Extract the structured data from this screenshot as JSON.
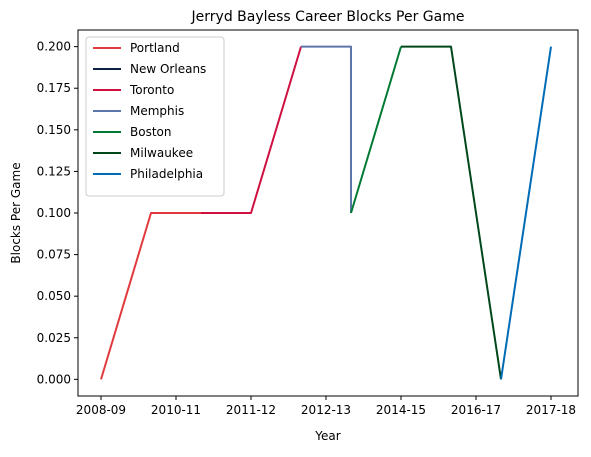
{
  "chart_data": {
    "type": "line",
    "title": "Jerryd Bayless Career Blocks Per Game",
    "xlabel": "Year",
    "ylabel": "Blocks Per Game",
    "x_tick_labels": [
      "2008-09",
      "2010-11",
      "2011-12",
      "2012-13",
      "2014-15",
      "2016-17",
      "2017-18"
    ],
    "y_tick_labels": [
      "0.000",
      "0.025",
      "0.050",
      "0.075",
      "0.100",
      "0.125",
      "0.150",
      "0.175",
      "0.200"
    ],
    "ylim": [
      -0.01,
      0.21
    ],
    "grid": false,
    "legend_position": "top-left",
    "series": [
      {
        "name": "Portland",
        "color": "#e03a3e",
        "points": [
          [
            "2008-09",
            0.0
          ],
          [
            "2009-10",
            0.1
          ],
          [
            "2010-11",
            0.1
          ]
        ]
      },
      {
        "name": "New Orleans",
        "color": "#0c2340",
        "points": [
          [
            "2010-11",
            0.1
          ]
        ]
      },
      {
        "name": "Toronto",
        "color": "#ce1141",
        "points": [
          [
            "2010-11",
            0.1
          ],
          [
            "2011-12",
            0.1
          ],
          [
            "2012-13",
            0.2
          ]
        ]
      },
      {
        "name": "Memphis",
        "color": "#5d76a9",
        "points": [
          [
            "2012-13",
            0.2
          ],
          [
            "2013-14",
            0.2
          ],
          [
            "2013-14",
            0.1
          ]
        ]
      },
      {
        "name": "Boston",
        "color": "#007a33",
        "points": [
          [
            "2013-14",
            0.1
          ],
          [
            "2014-15",
            0.2
          ]
        ]
      },
      {
        "name": "Milwaukee",
        "color": "#00471b",
        "points": [
          [
            "2014-15",
            0.2
          ],
          [
            "2015-16",
            0.2
          ],
          [
            "2016-17",
            0.0
          ]
        ]
      },
      {
        "name": "Philadelphia",
        "color": "#006bb6",
        "points": [
          [
            "2016-17",
            0.0
          ],
          [
            "2017-18",
            0.2
          ]
        ]
      }
    ]
  }
}
